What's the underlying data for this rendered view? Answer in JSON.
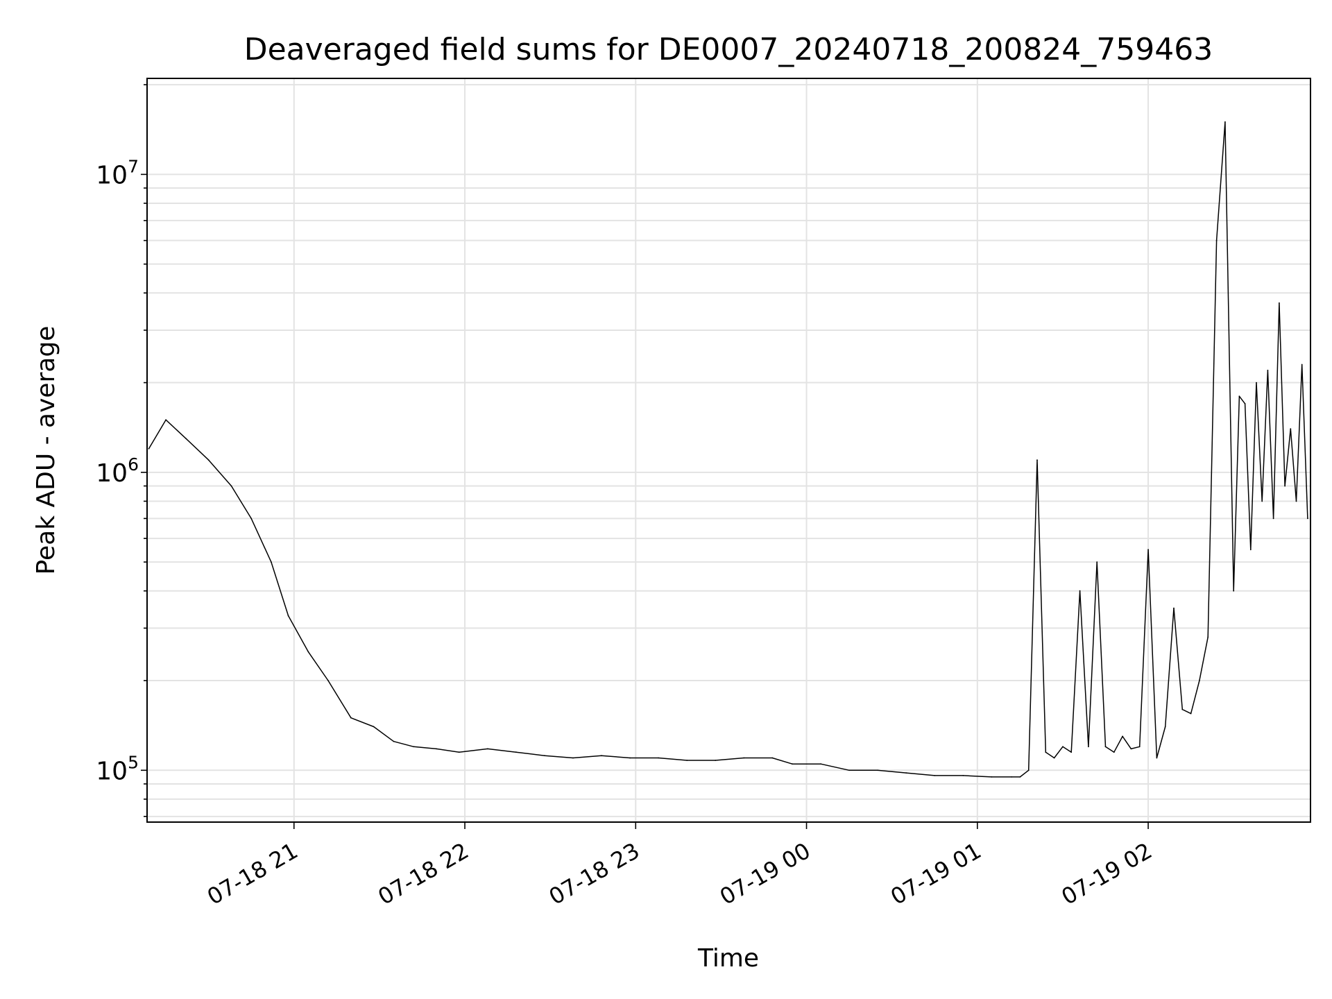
{
  "chart_data": {
    "type": "line",
    "title": "Deaveraged field sums for DE0007_20240718_200824_759463",
    "xlabel": "Time",
    "ylabel": "Peak ADU - average",
    "yscale": "log",
    "ylim": [
      67000,
      21000000
    ],
    "xlim": [
      "2024-07-18 20:08:24",
      "2024-07-19 02:57:00"
    ],
    "grid": true,
    "legend": "none",
    "line_color": "#000000",
    "x_ticks": [
      "07-18 21",
      "07-18 22",
      "07-18 23",
      "07-19 00",
      "07-19 01",
      "07-19 02"
    ],
    "y_ticks": [
      {
        "base": "10",
        "exp": "5",
        "value": 100000
      },
      {
        "base": "10",
        "exp": "6",
        "value": 1000000
      },
      {
        "base": "10",
        "exp": "7",
        "value": 10000000
      }
    ],
    "series": [
      {
        "x": [
          "2024-07-18 20:09",
          "2024-07-18 20:15",
          "2024-07-18 20:22",
          "2024-07-18 20:30",
          "2024-07-18 20:38",
          "2024-07-18 20:45",
          "2024-07-18 20:52",
          "2024-07-18 20:58",
          "2024-07-18 21:05",
          "2024-07-18 21:12",
          "2024-07-18 21:20",
          "2024-07-18 21:28",
          "2024-07-18 21:35",
          "2024-07-18 21:42",
          "2024-07-18 21:50",
          "2024-07-18 21:58",
          "2024-07-18 22:08",
          "2024-07-18 22:18",
          "2024-07-18 22:28",
          "2024-07-18 22:38",
          "2024-07-18 22:48",
          "2024-07-18 22:58",
          "2024-07-18 23:08",
          "2024-07-18 23:18",
          "2024-07-18 23:28",
          "2024-07-18 23:38",
          "2024-07-18 23:48",
          "2024-07-18 23:55",
          "2024-07-19 00:05",
          "2024-07-19 00:15",
          "2024-07-19 00:25",
          "2024-07-19 00:35",
          "2024-07-19 00:45",
          "2024-07-19 00:55",
          "2024-07-19 01:05",
          "2024-07-19 01:12",
          "2024-07-19 01:15",
          "2024-07-19 01:18",
          "2024-07-19 01:21",
          "2024-07-19 01:24",
          "2024-07-19 01:27",
          "2024-07-19 01:30",
          "2024-07-19 01:33",
          "2024-07-19 01:36",
          "2024-07-19 01:39",
          "2024-07-19 01:42",
          "2024-07-19 01:45",
          "2024-07-19 01:48",
          "2024-07-19 01:51",
          "2024-07-19 01:54",
          "2024-07-19 01:57",
          "2024-07-19 02:00",
          "2024-07-19 02:03",
          "2024-07-19 02:06",
          "2024-07-19 02:09",
          "2024-07-19 02:12",
          "2024-07-19 02:15",
          "2024-07-19 02:18",
          "2024-07-19 02:21",
          "2024-07-19 02:24",
          "2024-07-19 02:27",
          "2024-07-19 02:30",
          "2024-07-19 02:32",
          "2024-07-19 02:34",
          "2024-07-19 02:36",
          "2024-07-19 02:38",
          "2024-07-19 02:40",
          "2024-07-19 02:42",
          "2024-07-19 02:44",
          "2024-07-19 02:46",
          "2024-07-19 02:48",
          "2024-07-19 02:50",
          "2024-07-19 02:52",
          "2024-07-19 02:54",
          "2024-07-19 02:56"
        ],
        "y": [
          1200000,
          1500000,
          1300000,
          1100000,
          900000,
          700000,
          500000,
          330000,
          250000,
          200000,
          150000,
          140000,
          125000,
          120000,
          118000,
          115000,
          118000,
          115000,
          112000,
          110000,
          112000,
          110000,
          110000,
          108000,
          108000,
          110000,
          110000,
          105000,
          105000,
          100000,
          100000,
          98000,
          96000,
          96000,
          95000,
          95000,
          95000,
          100000,
          1100000,
          115000,
          110000,
          120000,
          115000,
          400000,
          120000,
          500000,
          120000,
          115000,
          130000,
          118000,
          120000,
          550000,
          110000,
          140000,
          350000,
          160000,
          155000,
          200000,
          280000,
          6000000,
          15000000,
          400000,
          1800000,
          1700000,
          550000,
          2000000,
          800000,
          2200000,
          700000,
          3700000,
          900000,
          1400000,
          800000,
          2300000,
          700000
        ]
      }
    ]
  }
}
